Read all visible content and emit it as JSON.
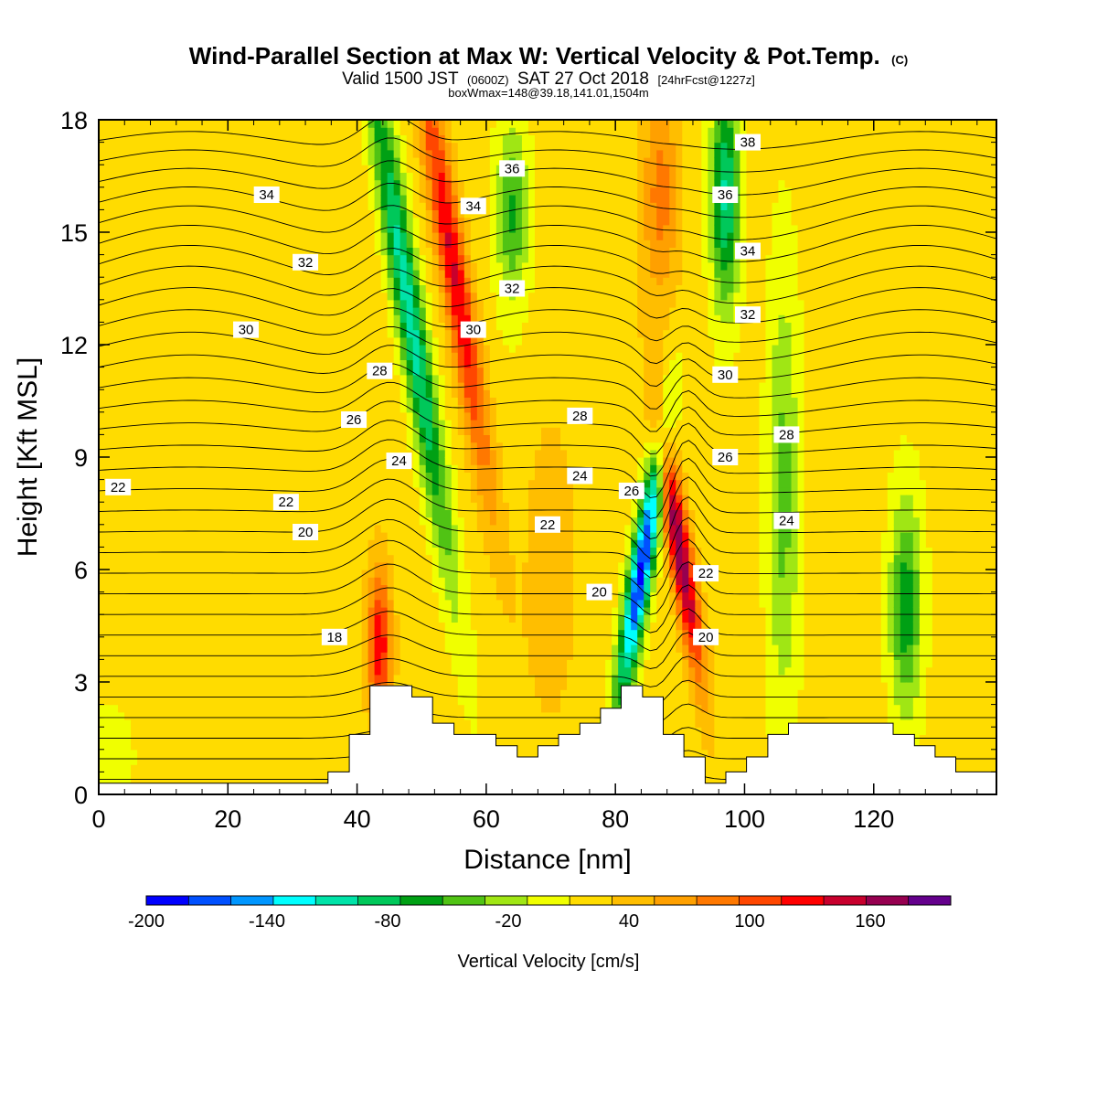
{
  "chart_data": {
    "type": "heatmap",
    "title": "Wind-Parallel Section at Max W: Vertical Velocity & Pot.Temp.",
    "title_suffix": "(C)",
    "subtitle_parts": [
      "Valid 1500 JST",
      "(0600Z)",
      "SAT 27 Oct 2018",
      "[24hrFcst@1227z]"
    ],
    "subtitle2": "boxWmax=148@39.18,141.01,1504m",
    "xlabel": "Distance [nm]",
    "ylabel": "Height [Kft MSL]",
    "xlim": [
      0,
      139
    ],
    "ylim": [
      0,
      18
    ],
    "x_ticks": [
      0,
      20,
      40,
      60,
      80,
      100,
      120
    ],
    "y_ticks": [
      0,
      3,
      6,
      9,
      12,
      15,
      18
    ],
    "colorbar": {
      "label": "Vertical Velocity [cm/s]",
      "min": -200,
      "max": 180,
      "step": 20,
      "tick_labels": [
        "-200",
        "-140",
        "-80",
        "-20",
        "40",
        "100",
        "160"
      ],
      "colors": [
        "#0000ff",
        "#0050ff",
        "#0096ff",
        "#00ffff",
        "#00e3a8",
        "#00c85a",
        "#00a014",
        "#50c314",
        "#a0e614",
        "#f0ff00",
        "#ffdc00",
        "#ffbe00",
        "#ffa000",
        "#ff7800",
        "#ff4600",
        "#ff0000",
        "#c8002d",
        "#960050",
        "#64008c"
      ]
    },
    "terrain_kft": [
      [
        0,
        0.3
      ],
      [
        35.5,
        0.3
      ],
      [
        35.5,
        0.6
      ],
      [
        38.8,
        0.6
      ],
      [
        38.8,
        1.6
      ],
      [
        42,
        1.6
      ],
      [
        42,
        2.9
      ],
      [
        48.5,
        2.9
      ],
      [
        48.5,
        2.6
      ],
      [
        51.7,
        2.6
      ],
      [
        51.7,
        1.9
      ],
      [
        55,
        1.9
      ],
      [
        55,
        1.6
      ],
      [
        61.5,
        1.6
      ],
      [
        61.5,
        1.3
      ],
      [
        64.8,
        1.3
      ],
      [
        64.8,
        1.0
      ],
      [
        68,
        1.0
      ],
      [
        68,
        1.3
      ],
      [
        71.2,
        1.3
      ],
      [
        71.2,
        1.6
      ],
      [
        74.5,
        1.6
      ],
      [
        74.5,
        1.9
      ],
      [
        77.7,
        1.9
      ],
      [
        77.7,
        2.3
      ],
      [
        80.9,
        2.3
      ],
      [
        80.9,
        2.9
      ],
      [
        84.2,
        2.9
      ],
      [
        84.2,
        2.6
      ],
      [
        87.4,
        2.6
      ],
      [
        87.4,
        1.6
      ],
      [
        90.6,
        1.6
      ],
      [
        90.6,
        1.0
      ],
      [
        93.9,
        1.0
      ],
      [
        93.9,
        0.3
      ],
      [
        97.1,
        0.3
      ],
      [
        97.1,
        0.6
      ],
      [
        100.3,
        0.6
      ],
      [
        100.3,
        1.0
      ],
      [
        103.6,
        1.0
      ],
      [
        103.6,
        1.6
      ],
      [
        106.8,
        1.6
      ],
      [
        106.8,
        1.9
      ],
      [
        119.8,
        1.9
      ],
      [
        119.8,
        1.9
      ],
      [
        123,
        1.9
      ],
      [
        123,
        1.6
      ],
      [
        126.3,
        1.6
      ],
      [
        126.3,
        1.3
      ],
      [
        129.5,
        1.3
      ],
      [
        129.5,
        1.0
      ],
      [
        132.7,
        1.0
      ],
      [
        132.7,
        0.6
      ],
      [
        139,
        0.6
      ]
    ],
    "w_features": [
      {
        "x": 2,
        "z": 1,
        "sx": 5,
        "sz": 2,
        "w": -22
      },
      {
        "x": 20,
        "z": 6,
        "sx": 20,
        "sz": 10,
        "w": 12
      },
      {
        "x": 48,
        "z": 13,
        "sx": 2.2,
        "sz": 7,
        "w": -120,
        "slope": -0.9
      },
      {
        "x": 43.5,
        "z": 4,
        "sx": 1.8,
        "sz": 2,
        "w": 105
      },
      {
        "x": 55,
        "z": 14,
        "sx": 2.2,
        "sz": 6,
        "w": 115,
        "slope": -0.9
      },
      {
        "x": 64,
        "z": 15.5,
        "sx": 2.5,
        "sz": 2.5,
        "w": -70
      },
      {
        "x": 84,
        "z": 6,
        "sx": 1.8,
        "sz": 3.5,
        "w": -195,
        "slope": 0.9
      },
      {
        "x": 90,
        "z": 6.5,
        "sx": 1.8,
        "sz": 3.5,
        "w": 150,
        "slope": -0.9
      },
      {
        "x": 97,
        "z": 16,
        "sx": 2.2,
        "sz": 3,
        "w": -110
      },
      {
        "x": 106,
        "z": 8,
        "sx": 2.5,
        "sz": 6,
        "w": -55
      },
      {
        "x": 125,
        "z": 5,
        "sx": 2.5,
        "sz": 3,
        "w": -80
      },
      {
        "x": 70,
        "z": 6,
        "sx": 4,
        "sz": 4,
        "w": 30
      },
      {
        "x": 87,
        "z": 16,
        "sx": 3,
        "sz": 3,
        "w": 60
      }
    ],
    "theta_contour_labels": [
      {
        "text": "38",
        "x": 100.5,
        "z": 17.4
      },
      {
        "text": "36",
        "x": 64,
        "z": 16.7
      },
      {
        "text": "36",
        "x": 97,
        "z": 16.0
      },
      {
        "text": "34",
        "x": 26,
        "z": 16.0
      },
      {
        "text": "34",
        "x": 58,
        "z": 15.7
      },
      {
        "text": "34",
        "x": 100.5,
        "z": 14.5
      },
      {
        "text": "32",
        "x": 32,
        "z": 14.2
      },
      {
        "text": "32",
        "x": 64,
        "z": 13.5
      },
      {
        "text": "32",
        "x": 100.5,
        "z": 12.8
      },
      {
        "text": "30",
        "x": 22.8,
        "z": 12.4
      },
      {
        "text": "30",
        "x": 58,
        "z": 12.4
      },
      {
        "text": "30",
        "x": 97,
        "z": 11.2
      },
      {
        "text": "28",
        "x": 43.5,
        "z": 11.3
      },
      {
        "text": "28",
        "x": 74.5,
        "z": 10.1
      },
      {
        "text": "28",
        "x": 106.5,
        "z": 9.6
      },
      {
        "text": "26",
        "x": 39.5,
        "z": 10.0
      },
      {
        "text": "26",
        "x": 97,
        "z": 9.0
      },
      {
        "text": "26",
        "x": 82.5,
        "z": 8.1
      },
      {
        "text": "24",
        "x": 46.5,
        "z": 8.9
      },
      {
        "text": "24",
        "x": 74.5,
        "z": 8.5
      },
      {
        "text": "24",
        "x": 106.5,
        "z": 7.3
      },
      {
        "text": "22",
        "x": 3,
        "z": 8.2
      },
      {
        "text": "22",
        "x": 29,
        "z": 7.8
      },
      {
        "text": "22",
        "x": 69.5,
        "z": 7.2
      },
      {
        "text": "22",
        "x": 94,
        "z": 5.9
      },
      {
        "text": "20",
        "x": 32,
        "z": 7.0
      },
      {
        "text": "20",
        "x": 77.5,
        "z": 5.4
      },
      {
        "text": "20",
        "x": 94,
        "z": 4.2
      },
      {
        "text": "18",
        "x": 36.5,
        "z": 4.2
      }
    ]
  }
}
